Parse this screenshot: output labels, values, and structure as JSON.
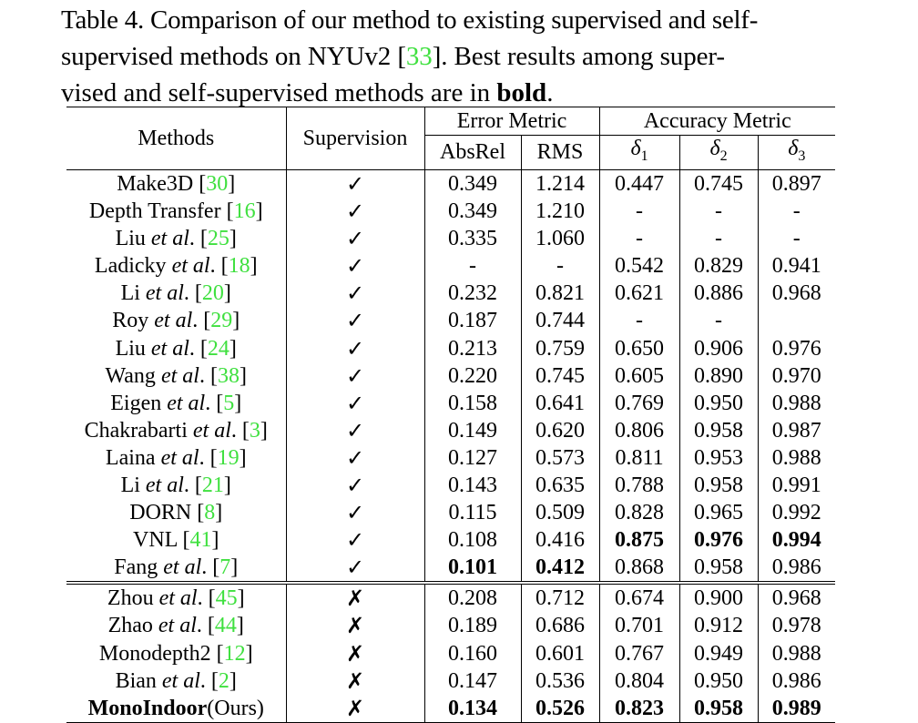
{
  "caption": {
    "line1": "Table 4. Comparison of our method to existing supervised and self-",
    "line2_a": "supervised methods on NYUv2 [",
    "line2_ref": "33",
    "line2_b": "].  Best results among super-",
    "line3_a": "vised and self-supervised methods are in ",
    "line3_bold": "bold",
    "line3_b": "."
  },
  "headers": {
    "methods": "Methods",
    "supervision": "Supervision",
    "error_metric": "Error Metric",
    "accuracy_metric": "Accuracy Metric",
    "absrel": "AbsRel",
    "rms": "RMS",
    "delta_symbol": "δ",
    "d1": "1",
    "d2": "2",
    "d3": "3"
  },
  "supervised_rows": [
    {
      "name": "Make3D",
      "etal": "",
      "ref": "30",
      "sup": "✓",
      "absrel": "0.349",
      "rms": "1.214",
      "d1": "0.447",
      "d2": "0.745",
      "d3": "0.897"
    },
    {
      "name": "Depth Transfer",
      "etal": "",
      "ref": "16",
      "sup": "✓",
      "absrel": "0.349",
      "rms": "1.210",
      "d1": "-",
      "d2": "-",
      "d3": "-"
    },
    {
      "name": "Liu",
      "etal": "et al",
      "ref": "25",
      "sup": "✓",
      "absrel": "0.335",
      "rms": "1.060",
      "d1": "-",
      "d2": "-",
      "d3": "-"
    },
    {
      "name": "Ladicky",
      "etal": "et al",
      "ref": "18",
      "sup": "✓",
      "absrel": "-",
      "rms": "-",
      "d1": "0.542",
      "d2": "0.829",
      "d3": "0.941"
    },
    {
      "name": "Li",
      "etal": "et al",
      "ref": "20",
      "sup": "✓",
      "absrel": "0.232",
      "rms": "0.821",
      "d1": "0.621",
      "d2": "0.886",
      "d3": "0.968"
    },
    {
      "name": "Roy",
      "etal": "et al",
      "ref": "29",
      "sup": "✓",
      "absrel": "0.187",
      "rms": "0.744",
      "d1": "-",
      "d2": "-",
      "d3": ""
    },
    {
      "name": "Liu",
      "etal": "et al",
      "ref": "24",
      "sup": "✓",
      "absrel": "0.213",
      "rms": "0.759",
      "d1": "0.650",
      "d2": "0.906",
      "d3": "0.976"
    },
    {
      "name": "Wang",
      "etal": "et al",
      "ref": "38",
      "sup": "✓",
      "absrel": "0.220",
      "rms": "0.745",
      "d1": "0.605",
      "d2": "0.890",
      "d3": "0.970"
    },
    {
      "name": "Eigen",
      "etal": "et al",
      "ref": "5",
      "sup": "✓",
      "absrel": "0.158",
      "rms": "0.641",
      "d1": "0.769",
      "d2": "0.950",
      "d3": "0.988"
    },
    {
      "name": "Chakrabarti",
      "etal": "et al",
      "ref": "3",
      "sup": "✓",
      "absrel": "0.149",
      "rms": "0.620",
      "d1": "0.806",
      "d2": "0.958",
      "d3": "0.987"
    },
    {
      "name": "Laina",
      "etal": "et al",
      "ref": "19",
      "sup": "✓",
      "absrel": "0.127",
      "rms": "0.573",
      "d1": "0.811",
      "d2": "0.953",
      "d3": "0.988"
    },
    {
      "name": "Li",
      "etal": "et al",
      "ref": "21",
      "sup": "✓",
      "absrel": "0.143",
      "rms": "0.635",
      "d1": "0.788",
      "d2": "0.958",
      "d3": "0.991"
    },
    {
      "name": "DORN",
      "etal": "",
      "ref": "8",
      "sup": "✓",
      "absrel": "0.115",
      "rms": "0.509",
      "d1": "0.828",
      "d2": "0.965",
      "d3": "0.992"
    },
    {
      "name": "VNL",
      "etal": "",
      "ref": "41",
      "sup": "✓",
      "absrel": "0.108",
      "rms": "0.416",
      "d1": "0.875",
      "d2": "0.976",
      "d3": "0.994",
      "bold": [
        "d1",
        "d2",
        "d3"
      ]
    },
    {
      "name": "Fang",
      "etal": "et al",
      "ref": "7",
      "sup": "✓",
      "absrel": "0.101",
      "rms": "0.412",
      "d1": "0.868",
      "d2": "0.958",
      "d3": "0.986",
      "bold": [
        "absrel",
        "rms"
      ]
    }
  ],
  "self_supervised_rows": [
    {
      "name": "Zhou",
      "etal": "et al",
      "ref": "45",
      "sup": "✗",
      "absrel": "0.208",
      "rms": "0.712",
      "d1": "0.674",
      "d2": "0.900",
      "d3": "0.968"
    },
    {
      "name": "Zhao",
      "etal": "et al",
      "ref": "44",
      "sup": "✗",
      "absrel": "0.189",
      "rms": "0.686",
      "d1": "0.701",
      "d2": "0.912",
      "d3": "0.978"
    },
    {
      "name": "Monodepth2",
      "etal": "",
      "ref": "12",
      "sup": "✗",
      "absrel": "0.160",
      "rms": "0.601",
      "d1": "0.767",
      "d2": "0.949",
      "d3": "0.988"
    },
    {
      "name": "Bian",
      "etal": "et al",
      "ref": "2",
      "sup": "✗",
      "absrel": "0.147",
      "rms": "0.536",
      "d1": "0.804",
      "d2": "0.950",
      "d3": "0.986"
    },
    {
      "name": "MonoIndoor",
      "name_suffix": "(Ours)",
      "etal": "",
      "ref": "",
      "sup": "✗",
      "absrel": "0.134",
      "rms": "0.526",
      "d1": "0.823",
      "d2": "0.958",
      "d3": "0.989",
      "name_bold": true,
      "bold": [
        "absrel",
        "rms",
        "d1",
        "d2",
        "d3"
      ]
    }
  ],
  "colors": {
    "ref_link": "#3fe03f",
    "text": "#000000"
  }
}
